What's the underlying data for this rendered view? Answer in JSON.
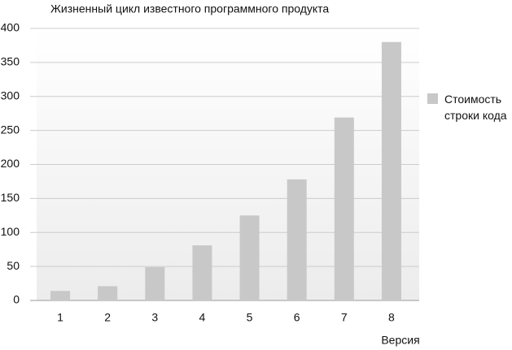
{
  "chart_data": {
    "type": "bar",
    "title": "Жизненный цикл известного программного продукта",
    "x_label": "Версия",
    "categories": [
      "1",
      "2",
      "3",
      "4",
      "5",
      "6",
      "7",
      "8"
    ],
    "series": [
      {
        "name": "Стоимость строки кода",
        "color": "#c8c8c8",
        "values": [
          14,
          21,
          49,
          81,
          125,
          178,
          269,
          380
        ]
      }
    ],
    "ylim": [
      0,
      400
    ],
    "yticks": [
      0,
      50,
      100,
      150,
      200,
      250,
      300,
      350,
      400
    ],
    "grid": true,
    "legend": "right"
  }
}
